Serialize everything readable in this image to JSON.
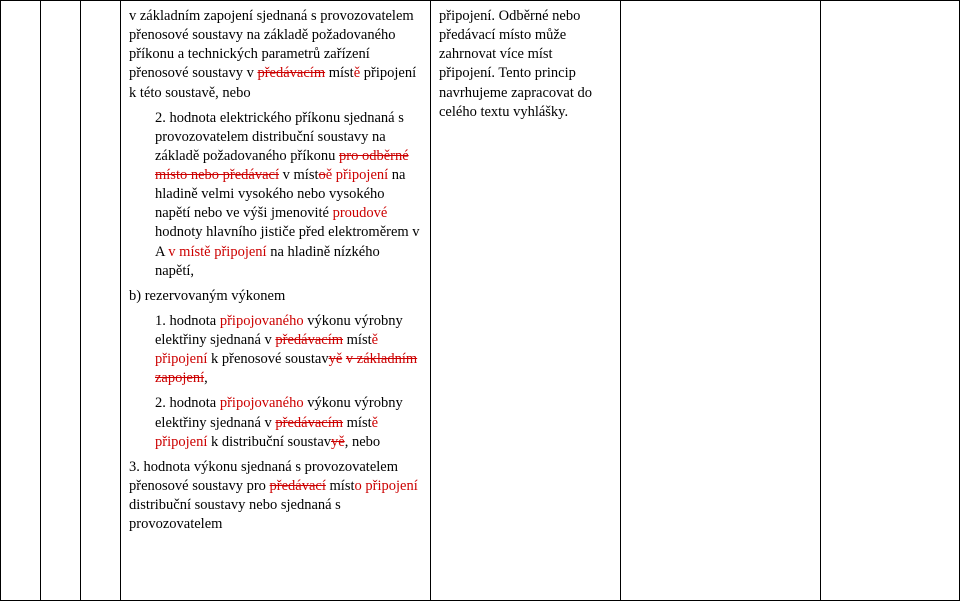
{
  "col4": {
    "p1_pre": "v základním zapojení sjednaná s provozovatelem přenosové soustavy na základě požadovaného příkonu a technických parametrů zařízení přenosové soustavy v ",
    "p1_strike1": "předávacím",
    "p1_mid": " míst",
    "p1_ins_e": "ě",
    "p1_post": " připojení k této soustavě, nebo",
    "p2_lead": "2. hodnota elektrického příkonu sjednaná s provozovatelem distribuční soustavy na základě požadovaného příkonu ",
    "p2_strike1": "pro odběrné místo nebo předávací",
    "p2_after_strike1": " v míst",
    "p2_strike2": "o",
    "p2_ins1": "ě připojení",
    "p2_post": " na hladině velmi vysokého nebo vysokého napětí nebo ve výši jmenovité ",
    "p2_ins2": "proudové ",
    "p2_post2": "hodnoty hlavního jističe před elektroměrem v A ",
    "p2_ins3": "v místě připojení ",
    "p2_post3": "na hladině nízkého napětí,",
    "pb": "b) rezervovaným výkonem",
    "p3_lead": "1. hodnota ",
    "p3_ins1": "připojovaného ",
    "p3_mid1": "výkonu výrobny elektřiny sjednaná v ",
    "p3_strike1": "předávacím",
    "p3_mid2": " míst",
    "p3_ins_e": "ě",
    "p3_ins2": " připojení",
    "p3_mid3": " k přenosové soustav",
    "p3_strike2": "yě",
    "p3_mid4": " ",
    "p3_strike3": "v základním zapojení",
    "p3_post": ",",
    "p4_lead": "2. hodnota ",
    "p4_ins1": "připojovaného ",
    "p4_mid1": "výkonu výrobny elektřiny sjednaná v ",
    "p4_strike1": "předávacím",
    "p4_mid2": " míst",
    "p4_ins_e": "ě",
    "p4_ins2": " připojení",
    "p4_mid3": " k distribuční soustav",
    "p4_strike2": "yě",
    "p4_post": ", nebo",
    "p5_lead": "3. hodnota výkonu sjednaná s provozovatelem přenosové soustavy pro ",
    "p5_strike1": "předávací",
    "p5_mid": " míst",
    "p5_ins1": "o připojení",
    "p5_post": " distribuční soustavy nebo sjednaná s provozovatelem"
  },
  "col5": {
    "text_pre": "připojení. Odběrné nebo předávací místo může zahrnovat více míst připojení. Tento princip navrhujeme zapracovat do celého textu vyhlášky."
  },
  "style": {
    "strike_color": "#c00000",
    "ins_color": "#c00000",
    "text_color": "#000000",
    "bg": "#ffffff",
    "font_family": "Times New Roman",
    "font_size_pt": 11
  }
}
